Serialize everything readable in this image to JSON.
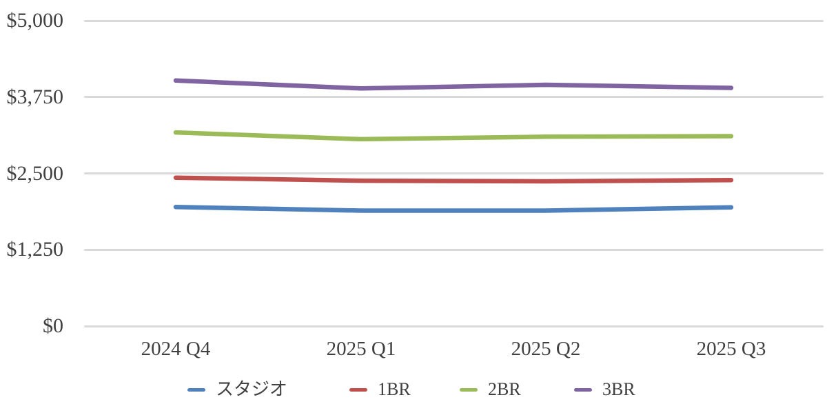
{
  "chart_data": {
    "type": "line",
    "title": "",
    "xlabel": "",
    "ylabel": "",
    "x": [
      "2024 Q4",
      "2025 Q1",
      "2025 Q2",
      "2025 Q3"
    ],
    "series": [
      {
        "name": "スタジオ",
        "color": "#4F81BD",
        "values": [
          1950,
          1890,
          1890,
          1945
        ]
      },
      {
        "name": "1BR",
        "color": "#C0504D",
        "values": [
          2430,
          2380,
          2370,
          2390
        ]
      },
      {
        "name": "2BR",
        "color": "#9BBB59",
        "values": [
          3170,
          3060,
          3100,
          3110
        ]
      },
      {
        "name": "3BR",
        "color": "#8064A2",
        "values": [
          4020,
          3890,
          3950,
          3900
        ]
      }
    ],
    "ylim": [
      0,
      5000
    ],
    "yticks": [
      0,
      1250,
      2500,
      3750,
      5000
    ],
    "ytick_labels": [
      "$0",
      "$1,250",
      "$2,500",
      "$3,750",
      "$5,000"
    ],
    "grid": true,
    "legend_position": "bottom",
    "colors": {
      "gridline": "#d9d9d9",
      "text": "#404040",
      "background": "#ffffff"
    }
  }
}
